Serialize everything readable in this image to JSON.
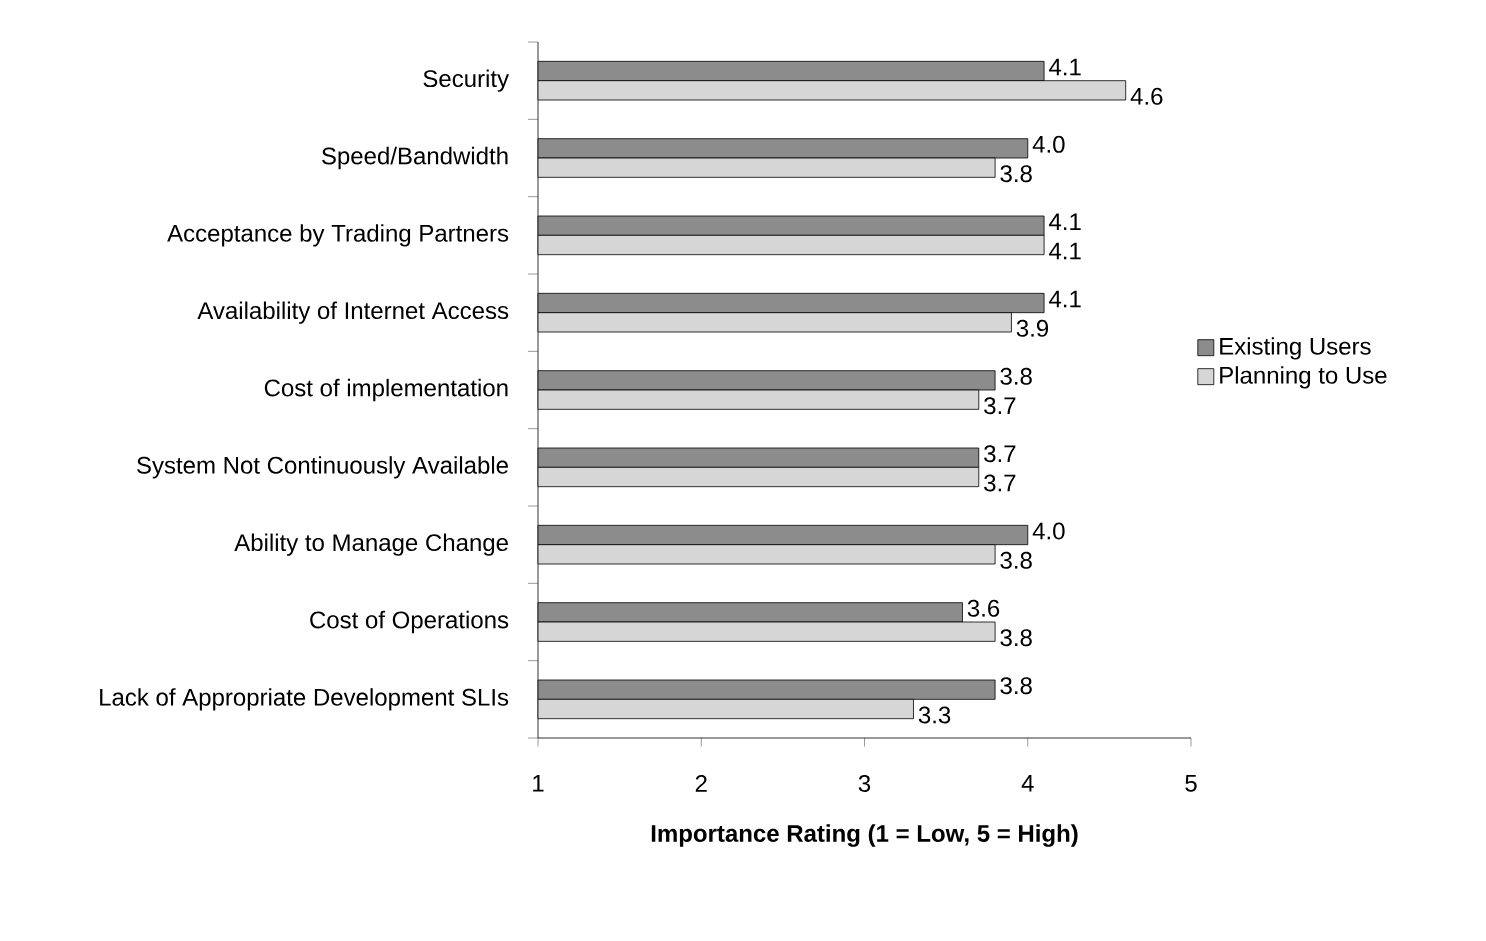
{
  "chart_data": {
    "type": "bar",
    "orientation": "horizontal",
    "xlabel": "Importance Rating (1 = Low, 5 = High)",
    "categories": [
      "Security",
      "Speed/Bandwidth",
      "Acceptance by Trading Partners",
      "Availability of Internet Access",
      "Cost of implementation",
      "System Not Continuously Available",
      "Ability to Manage Change",
      "Cost of Operations",
      "Lack of Appropriate Development SLIs"
    ],
    "series": [
      {
        "name": "Existing Users",
        "color": "#8c8c8c",
        "values": [
          4.1,
          4.0,
          4.1,
          4.1,
          3.8,
          3.7,
          4.0,
          3.6,
          3.8
        ],
        "value_labels": [
          "4.1",
          "4.0",
          "4.1",
          "4.1",
          "3.8",
          "3.7",
          "4.0",
          "3.6",
          "3.8"
        ]
      },
      {
        "name": "Planning to Use",
        "color": "#d6d6d6",
        "values": [
          4.6,
          3.8,
          4.1,
          3.9,
          3.7,
          3.7,
          3.8,
          3.8,
          3.3
        ],
        "value_labels": [
          "4.6",
          "3.8",
          "4.1",
          "3.9",
          "3.7",
          "3.7",
          "3.8",
          "3.8",
          "3.3"
        ]
      }
    ],
    "xlim": [
      1,
      5
    ],
    "xticks": [
      1,
      2,
      3,
      4,
      5
    ],
    "legend": "right",
    "grid": false
  }
}
